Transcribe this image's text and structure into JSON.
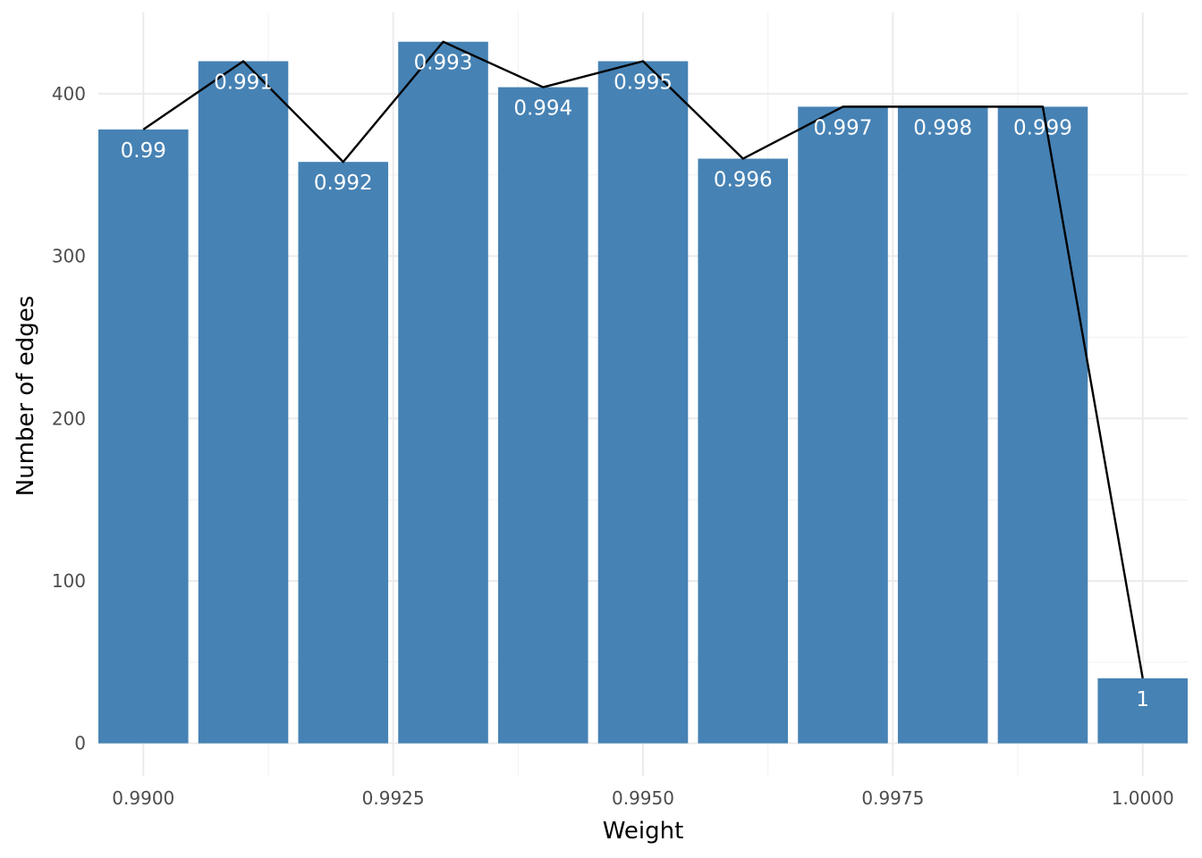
{
  "chart_data": {
    "type": "bar",
    "xlabel": "Weight",
    "ylabel": "Number of edges",
    "xlim": [
      0.98955,
      1.00045
    ],
    "ylim": [
      -20,
      450
    ],
    "x_ticks": [
      0.99,
      0.9925,
      0.995,
      0.9975,
      1.0
    ],
    "x_tick_labels": [
      "0.9900",
      "0.9925",
      "0.9950",
      "0.9975",
      "1.0000"
    ],
    "y_ticks": [
      0,
      100,
      200,
      300,
      400
    ],
    "y_tick_labels": [
      "0",
      "100",
      "200",
      "300",
      "400"
    ],
    "bar_width": 0.0009,
    "grid": true,
    "legend": "none",
    "bar_color": "#4682b4",
    "line_color": "#000000",
    "bars": [
      {
        "x": 0.99,
        "value": 378,
        "label": "0.99"
      },
      {
        "x": 0.991,
        "value": 420,
        "label": "0.991"
      },
      {
        "x": 0.992,
        "value": 358,
        "label": "0.992"
      },
      {
        "x": 0.993,
        "value": 432,
        "label": "0.993"
      },
      {
        "x": 0.994,
        "value": 404,
        "label": "0.994"
      },
      {
        "x": 0.995,
        "value": 420,
        "label": "0.995"
      },
      {
        "x": 0.996,
        "value": 360,
        "label": "0.996"
      },
      {
        "x": 0.997,
        "value": 392,
        "label": "0.997"
      },
      {
        "x": 0.998,
        "value": 392,
        "label": "0.998"
      },
      {
        "x": 0.999,
        "value": 392,
        "label": "0.999"
      },
      {
        "x": 1.0,
        "value": 40,
        "label": "1"
      }
    ]
  }
}
